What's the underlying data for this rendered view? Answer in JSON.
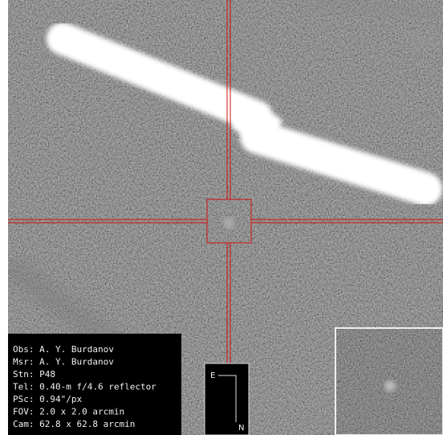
{
  "info": {
    "lines": [
      "Obs: A. Y. Burdanov",
      "Msr: A. Y. Burdanov",
      "Stn: P48",
      "Tel: 0.40-m f/4.6 reflector",
      "PSc: 0.94\"/px",
      "FOV: 2.0 x 2.0 arcmin",
      "Cam: 62.8 x 62.8 arcmin"
    ]
  },
  "compass": {
    "east": "E",
    "north": "N"
  }
}
